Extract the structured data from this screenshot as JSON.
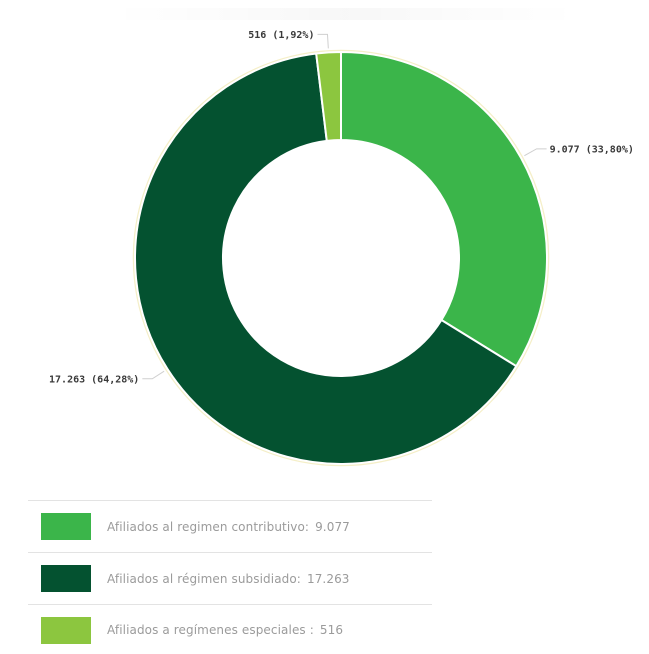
{
  "chart_data": {
    "type": "pie",
    "variant": "donut",
    "slices": [
      {
        "label": "Afiliados al regimen contributivo",
        "value": 9077,
        "display_value": "9.077",
        "percent": 33.8,
        "display_label": "9.077 (33,80%)",
        "color": "#3bb54a"
      },
      {
        "label": "Afiliados al régimen subsidiado",
        "value": 17263,
        "display_value": "17.263",
        "percent": 64.28,
        "display_label": "17.263 (64,28%)",
        "color": "#045230"
      },
      {
        "label": "Afiliados a regímenes especiales",
        "value": 516,
        "display_value": "516",
        "percent": 1.92,
        "display_label": "516 (1,92%)",
        "color": "#8cc63f"
      }
    ]
  },
  "legend": {
    "items": [
      {
        "text": "Afiliados al regimen contributivo:",
        "value": "9.077",
        "color": "#3bb54a"
      },
      {
        "text": "Afiliados al régimen subsidiado:",
        "value": "17.263",
        "color": "#045230"
      },
      {
        "text": "Afiliados a regímenes especiales :",
        "value": "516",
        "color": "#8cc63f"
      }
    ]
  }
}
